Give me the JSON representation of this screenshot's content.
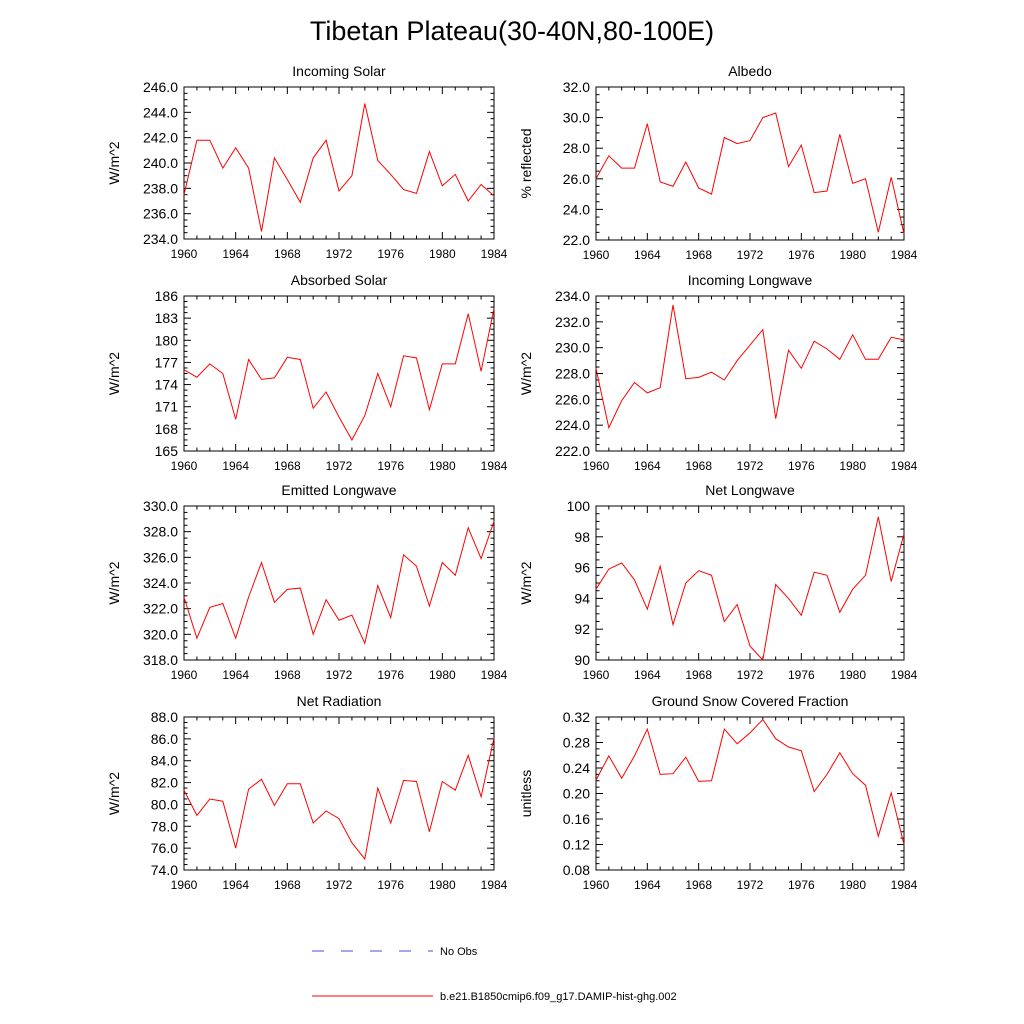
{
  "page_title": "Tibetan Plateau(30-40N,80-100E)",
  "legend": {
    "no_obs_label": "No Obs",
    "model_label": "b.e21.B1850cmip6.f09_g17.DAMIP-hist-ghg.002",
    "no_obs_color": "#4a4ae0",
    "model_color": "#ff0000"
  },
  "chart_data": [
    {
      "type": "line",
      "title": "Incoming Solar",
      "xlabel": "",
      "ylabel": "W/m^2",
      "xlim": [
        1960,
        1984
      ],
      "ylim": [
        234.0,
        246.0
      ],
      "xticks": [
        "1960",
        "1964",
        "1968",
        "1972",
        "1976",
        "1980",
        "1984"
      ],
      "yticks": [
        "234.0",
        "236.0",
        "238.0",
        "240.0",
        "242.0",
        "244.0",
        "246.0"
      ],
      "x": [
        1960,
        1961,
        1962,
        1963,
        1964,
        1965,
        1966,
        1967,
        1968,
        1969,
        1970,
        1971,
        1972,
        1973,
        1974,
        1975,
        1976,
        1977,
        1978,
        1979,
        1980,
        1981,
        1982,
        1983,
        1984
      ],
      "series": [
        {
          "name": "b.e21.B1850cmip6.f09_g17.DAMIP-hist-ghg.002",
          "color": "#ff0000",
          "values": [
            237.5,
            241.8,
            241.8,
            239.6,
            241.2,
            239.6,
            234.6,
            240.4,
            238.7,
            236.9,
            240.4,
            241.8,
            237.8,
            239.0,
            244.7,
            240.2,
            239.1,
            237.9,
            237.6,
            240.9,
            238.2,
            239.1,
            237.0,
            238.3,
            237.4
          ]
        }
      ]
    },
    {
      "type": "line",
      "title": "Albedo",
      "xlabel": "",
      "ylabel": "% reflected",
      "xlim": [
        1960,
        1984
      ],
      "ylim": [
        22.0,
        32.0
      ],
      "xticks": [
        "1960",
        "1964",
        "1968",
        "1972",
        "1976",
        "1980",
        "1984"
      ],
      "yticks": [
        "22.0",
        "24.0",
        "26.0",
        "28.0",
        "30.0",
        "32.0"
      ],
      "x": [
        1960,
        1961,
        1962,
        1963,
        1964,
        1965,
        1966,
        1967,
        1968,
        1969,
        1970,
        1971,
        1972,
        1973,
        1974,
        1975,
        1976,
        1977,
        1978,
        1979,
        1980,
        1981,
        1982,
        1983,
        1984
      ],
      "series": [
        {
          "name": "b.e21.B1850cmip6.f09_g17.DAMIP-hist-ghg.002",
          "color": "#ff0000",
          "values": [
            26.0,
            27.5,
            26.7,
            26.7,
            29.6,
            25.8,
            25.5,
            27.1,
            25.4,
            25.0,
            28.7,
            28.3,
            28.5,
            30.0,
            30.3,
            26.8,
            28.2,
            25.1,
            25.2,
            28.9,
            25.7,
            26.0,
            22.5,
            26.1,
            22.4
          ]
        }
      ]
    },
    {
      "type": "line",
      "title": "Absorbed Solar",
      "xlabel": "",
      "ylabel": "W/m^2",
      "xlim": [
        1960,
        1984
      ],
      "ylim": [
        165,
        186
      ],
      "xticks": [
        "1960",
        "1964",
        "1968",
        "1972",
        "1976",
        "1980",
        "1984"
      ],
      "yticks": [
        "165",
        "168",
        "171",
        "174",
        "177",
        "180",
        "183",
        "186"
      ],
      "x": [
        1960,
        1961,
        1962,
        1963,
        1964,
        1965,
        1966,
        1967,
        1968,
        1969,
        1970,
        1971,
        1972,
        1973,
        1974,
        1975,
        1976,
        1977,
        1978,
        1979,
        1980,
        1981,
        1982,
        1983,
        1984
      ],
      "series": [
        {
          "name": "b.e21.B1850cmip6.f09_g17.DAMIP-hist-ghg.002",
          "color": "#ff0000",
          "values": [
            176.0,
            175.0,
            176.8,
            175.5,
            169.3,
            177.4,
            174.7,
            174.9,
            177.7,
            177.4,
            170.8,
            173.0,
            169.6,
            166.5,
            169.8,
            175.5,
            171.0,
            177.9,
            177.6,
            170.6,
            176.8,
            176.8,
            183.6,
            175.8,
            184.3
          ]
        }
      ]
    },
    {
      "type": "line",
      "title": "Incoming Longwave",
      "xlabel": "",
      "ylabel": "W/m^2",
      "xlim": [
        1960,
        1984
      ],
      "ylim": [
        222.0,
        234.0
      ],
      "xticks": [
        "1960",
        "1964",
        "1968",
        "1972",
        "1976",
        "1980",
        "1984"
      ],
      "yticks": [
        "222.0",
        "224.0",
        "226.0",
        "228.0",
        "230.0",
        "232.0",
        "234.0"
      ],
      "x": [
        1960,
        1961,
        1962,
        1963,
        1964,
        1965,
        1966,
        1967,
        1968,
        1969,
        1970,
        1971,
        1972,
        1973,
        1974,
        1975,
        1976,
        1977,
        1978,
        1979,
        1980,
        1981,
        1982,
        1983,
        1984
      ],
      "series": [
        {
          "name": "b.e21.B1850cmip6.f09_g17.DAMIP-hist-ghg.002",
          "color": "#ff0000",
          "values": [
            228.4,
            223.8,
            225.9,
            227.3,
            226.5,
            226.9,
            233.3,
            227.6,
            227.7,
            228.1,
            227.5,
            229.0,
            230.2,
            231.4,
            224.5,
            229.8,
            228.4,
            230.5,
            229.9,
            229.1,
            231.0,
            229.1,
            229.1,
            230.8,
            230.6
          ]
        }
      ]
    },
    {
      "type": "line",
      "title": "Emitted Longwave",
      "xlabel": "",
      "ylabel": "W/m^2",
      "xlim": [
        1960,
        1984
      ],
      "ylim": [
        318.0,
        330.0
      ],
      "xticks": [
        "1960",
        "1964",
        "1968",
        "1972",
        "1976",
        "1980",
        "1984"
      ],
      "yticks": [
        "318.0",
        "320.0",
        "322.0",
        "324.0",
        "326.0",
        "328.0",
        "330.0"
      ],
      "x": [
        1960,
        1961,
        1962,
        1963,
        1964,
        1965,
        1966,
        1967,
        1968,
        1969,
        1970,
        1971,
        1972,
        1973,
        1974,
        1975,
        1976,
        1977,
        1978,
        1979,
        1980,
        1981,
        1982,
        1983,
        1984
      ],
      "series": [
        {
          "name": "b.e21.B1850cmip6.f09_g17.DAMIP-hist-ghg.002",
          "color": "#ff0000",
          "values": [
            322.9,
            319.7,
            322.1,
            322.4,
            319.7,
            322.9,
            325.6,
            322.5,
            323.5,
            323.6,
            320.0,
            322.7,
            321.1,
            321.5,
            319.3,
            323.8,
            321.3,
            326.2,
            325.3,
            322.2,
            325.6,
            324.6,
            328.3,
            325.9,
            328.8
          ]
        }
      ]
    },
    {
      "type": "line",
      "title": "Net Longwave",
      "xlabel": "",
      "ylabel": "W/m^2",
      "xlim": [
        1960,
        1984
      ],
      "ylim": [
        90,
        100
      ],
      "xticks": [
        "1960",
        "1964",
        "1968",
        "1972",
        "1976",
        "1980",
        "1984"
      ],
      "yticks": [
        "90",
        "92",
        "94",
        "96",
        "98",
        "100"
      ],
      "x": [
        1960,
        1961,
        1962,
        1963,
        1964,
        1965,
        1966,
        1967,
        1968,
        1969,
        1970,
        1971,
        1972,
        1973,
        1974,
        1975,
        1976,
        1977,
        1978,
        1979,
        1980,
        1981,
        1982,
        1983,
        1984
      ],
      "series": [
        {
          "name": "b.e21.B1850cmip6.f09_g17.DAMIP-hist-ghg.002",
          "color": "#ff0000",
          "values": [
            94.6,
            95.9,
            96.3,
            95.2,
            93.3,
            96.1,
            92.3,
            95.0,
            95.8,
            95.5,
            92.5,
            93.6,
            90.9,
            90.0,
            94.9,
            94.0,
            92.9,
            95.7,
            95.5,
            93.1,
            94.6,
            95.5,
            99.3,
            95.1,
            98.2
          ]
        }
      ]
    },
    {
      "type": "line",
      "title": "Net Radiation",
      "xlabel": "",
      "ylabel": "W/m^2",
      "xlim": [
        1960,
        1984
      ],
      "ylim": [
        74.0,
        88.0
      ],
      "xticks": [
        "1960",
        "1964",
        "1968",
        "1972",
        "1976",
        "1980",
        "1984"
      ],
      "yticks": [
        "74.0",
        "76.0",
        "78.0",
        "80.0",
        "82.0",
        "84.0",
        "86.0",
        "88.0"
      ],
      "x": [
        1960,
        1961,
        1962,
        1963,
        1964,
        1965,
        1966,
        1967,
        1968,
        1969,
        1970,
        1971,
        1972,
        1973,
        1974,
        1975,
        1976,
        1977,
        1978,
        1979,
        1980,
        1981,
        1982,
        1983,
        1984
      ],
      "series": [
        {
          "name": "b.e21.B1850cmip6.f09_g17.DAMIP-hist-ghg.002",
          "color": "#ff0000",
          "values": [
            81.3,
            79.0,
            80.5,
            80.3,
            76.0,
            81.4,
            82.3,
            79.9,
            81.9,
            81.9,
            78.3,
            79.4,
            78.7,
            76.5,
            75.0,
            81.5,
            78.3,
            82.2,
            82.1,
            77.5,
            82.1,
            81.3,
            84.5,
            80.7,
            86.1
          ]
        }
      ]
    },
    {
      "type": "line",
      "title": "Ground Snow Covered Fraction",
      "xlabel": "",
      "ylabel": "unitless",
      "xlim": [
        1960,
        1984
      ],
      "ylim": [
        0.08,
        0.32
      ],
      "xticks": [
        "1960",
        "1964",
        "1968",
        "1972",
        "1976",
        "1980",
        "1984"
      ],
      "yticks": [
        "0.08",
        "0.12",
        "0.16",
        "0.20",
        "0.24",
        "0.28",
        "0.32"
      ],
      "x": [
        1960,
        1961,
        1962,
        1963,
        1964,
        1965,
        1966,
        1967,
        1968,
        1969,
        1970,
        1971,
        1972,
        1973,
        1974,
        1975,
        1976,
        1977,
        1978,
        1979,
        1980,
        1981,
        1982,
        1983,
        1984
      ],
      "series": [
        {
          "name": "b.e21.B1850cmip6.f09_g17.DAMIP-hist-ghg.002",
          "color": "#ff0000",
          "values": [
            0.221,
            0.259,
            0.224,
            0.259,
            0.301,
            0.23,
            0.231,
            0.257,
            0.219,
            0.22,
            0.301,
            0.278,
            0.295,
            0.316,
            0.286,
            0.273,
            0.267,
            0.203,
            0.23,
            0.264,
            0.231,
            0.213,
            0.133,
            0.201,
            0.12
          ]
        }
      ]
    }
  ]
}
